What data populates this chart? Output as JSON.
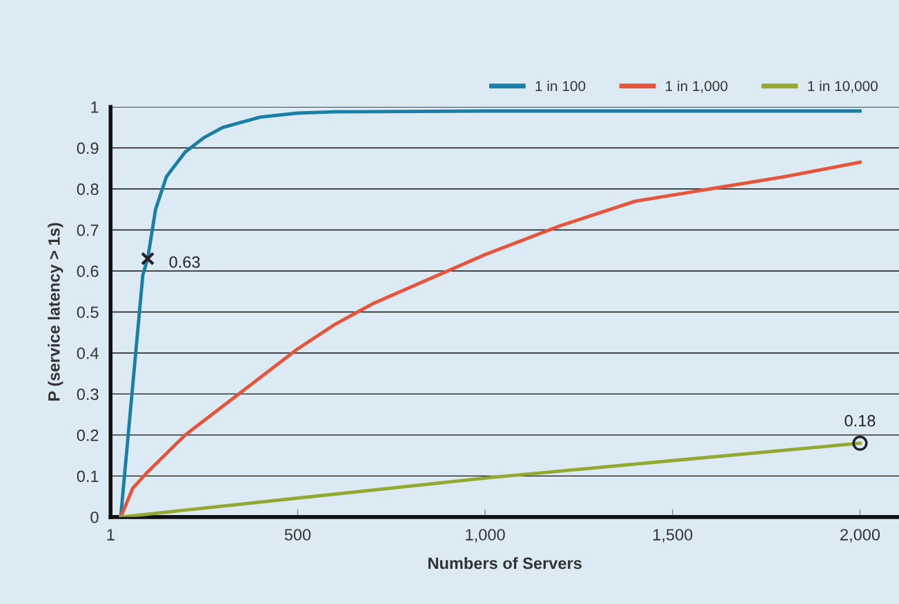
{
  "chart_data": {
    "type": "line",
    "xlabel": "Numbers of Servers",
    "ylabel": "P (service latency > 1s)",
    "xlim": [
      1,
      2104
    ],
    "ylim": [
      0,
      1
    ],
    "xticks": [
      1,
      500,
      {
        "value": 1000,
        "label": "1,000"
      },
      {
        "value": 1500,
        "label": "1,500"
      },
      {
        "value": 2000,
        "label": "2,000"
      }
    ],
    "yticks": [
      0,
      0.1,
      0.2,
      0.3,
      0.4,
      0.5,
      0.6,
      0.7,
      0.8,
      0.9,
      1
    ],
    "grid": "y",
    "legend": "top right",
    "marker": "none",
    "line_style": "solid",
    "series": [
      {
        "name": "1 in 100",
        "color": "#1a7fa6",
        "x": [
          28,
          87,
          100,
          121,
          150,
          200,
          250,
          300,
          400,
          500,
          600,
          1000,
          2000
        ],
        "values": [
          0,
          0.59,
          0.63,
          0.75,
          0.83,
          0.89,
          0.925,
          0.95,
          0.975,
          0.985,
          0.988,
          0.99,
          0.99
        ]
      },
      {
        "name": "1 in 1,000",
        "color": "#e8543a",
        "x": [
          28,
          60,
          100,
          200,
          300,
          400,
          500,
          600,
          700,
          800,
          1000,
          1200,
          1400,
          1600,
          1800,
          2000
        ],
        "values": [
          0,
          0.07,
          0.11,
          0.2,
          0.27,
          0.34,
          0.41,
          0.47,
          0.52,
          0.56,
          0.64,
          0.71,
          0.77,
          0.8,
          0.83,
          0.865
        ]
      },
      {
        "name": "1 in 10,000",
        "color": "#94a832",
        "x": [
          28,
          1000,
          2000
        ],
        "values": [
          0,
          0.095,
          0.18
        ]
      },
      {
        "type": "scatter",
        "marker": "cross",
        "color": "#222222",
        "x": [
          100
        ],
        "values": [
          0.63
        ]
      },
      {
        "type": "scatter",
        "marker": "circle",
        "color": "#222222",
        "x": [
          2000
        ],
        "values": [
          0.18
        ]
      }
    ],
    "annotations": [
      {
        "text": "0.63",
        "x": 100,
        "y": 0.63
      },
      {
        "text": "0.18",
        "x": 2000,
        "y": 0.18
      }
    ]
  }
}
